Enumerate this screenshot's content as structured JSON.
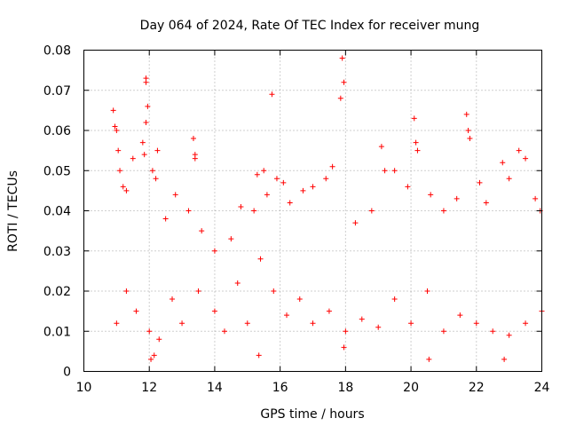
{
  "chart_data": {
    "type": "scatter",
    "title": "Day 064 of 2024, Rate Of TEC Index for receiver mung",
    "xlabel": "GPS time / hours",
    "ylabel": "ROTI / TECUs",
    "xlim": [
      10,
      24
    ],
    "ylim": [
      0,
      0.08
    ],
    "x_ticks": [
      "10",
      "12",
      "14",
      "16",
      "18",
      "20",
      "22",
      "24"
    ],
    "y_ticks": [
      "0",
      "0.01",
      "0.02",
      "0.03",
      "0.04",
      "0.05",
      "0.06",
      "0.07",
      "0.08"
    ],
    "grid": true,
    "marker": "+",
    "series_color": "#ff0000",
    "series": [
      {
        "name": "ROTI",
        "points": [
          [
            10.9,
            0.065
          ],
          [
            10.95,
            0.061
          ],
          [
            11.0,
            0.06
          ],
          [
            11.05,
            0.055
          ],
          [
            11.1,
            0.05
          ],
          [
            11.2,
            0.046
          ],
          [
            11.3,
            0.045
          ],
          [
            11.5,
            0.053
          ],
          [
            11.8,
            0.057
          ],
          [
            11.85,
            0.054
          ],
          [
            11.9,
            0.073
          ],
          [
            11.9,
            0.072
          ],
          [
            11.95,
            0.066
          ],
          [
            11.9,
            0.062
          ],
          [
            12.1,
            0.05
          ],
          [
            12.2,
            0.048
          ],
          [
            12.25,
            0.055
          ],
          [
            12.5,
            0.038
          ],
          [
            12.8,
            0.044
          ],
          [
            13.2,
            0.04
          ],
          [
            13.35,
            0.058
          ],
          [
            13.4,
            0.054
          ],
          [
            13.4,
            0.053
          ],
          [
            13.6,
            0.035
          ],
          [
            14.0,
            0.03
          ],
          [
            14.5,
            0.033
          ],
          [
            14.8,
            0.041
          ],
          [
            15.2,
            0.04
          ],
          [
            15.3,
            0.049
          ],
          [
            15.5,
            0.05
          ],
          [
            15.6,
            0.044
          ],
          [
            15.75,
            0.069
          ],
          [
            15.9,
            0.048
          ],
          [
            16.1,
            0.047
          ],
          [
            16.3,
            0.042
          ],
          [
            16.7,
            0.045
          ],
          [
            17.0,
            0.046
          ],
          [
            17.4,
            0.048
          ],
          [
            17.6,
            0.051
          ],
          [
            17.85,
            0.068
          ],
          [
            17.9,
            0.078
          ],
          [
            17.95,
            0.072
          ],
          [
            18.3,
            0.037
          ],
          [
            18.8,
            0.04
          ],
          [
            19.1,
            0.056
          ],
          [
            19.2,
            0.05
          ],
          [
            19.5,
            0.05
          ],
          [
            19.9,
            0.046
          ],
          [
            20.1,
            0.063
          ],
          [
            20.15,
            0.057
          ],
          [
            20.2,
            0.055
          ],
          [
            20.6,
            0.044
          ],
          [
            21.0,
            0.04
          ],
          [
            21.4,
            0.043
          ],
          [
            21.7,
            0.064
          ],
          [
            21.75,
            0.06
          ],
          [
            21.8,
            0.058
          ],
          [
            22.1,
            0.047
          ],
          [
            22.3,
            0.042
          ],
          [
            22.8,
            0.052
          ],
          [
            23.0,
            0.048
          ],
          [
            23.3,
            0.055
          ],
          [
            23.5,
            0.053
          ],
          [
            23.8,
            0.043
          ],
          [
            23.95,
            0.04
          ],
          [
            11.0,
            0.012
          ],
          [
            11.3,
            0.02
          ],
          [
            11.6,
            0.015
          ],
          [
            12.0,
            0.01
          ],
          [
            12.3,
            0.008
          ],
          [
            12.7,
            0.018
          ],
          [
            13.0,
            0.012
          ],
          [
            13.5,
            0.02
          ],
          [
            14.0,
            0.015
          ],
          [
            14.3,
            0.01
          ],
          [
            14.7,
            0.022
          ],
          [
            15.0,
            0.012
          ],
          [
            15.4,
            0.028
          ],
          [
            15.8,
            0.02
          ],
          [
            16.2,
            0.014
          ],
          [
            16.6,
            0.018
          ],
          [
            17.0,
            0.012
          ],
          [
            17.5,
            0.015
          ],
          [
            18.0,
            0.01
          ],
          [
            18.5,
            0.013
          ],
          [
            19.0,
            0.011
          ],
          [
            19.5,
            0.018
          ],
          [
            20.0,
            0.012
          ],
          [
            20.5,
            0.02
          ],
          [
            21.0,
            0.01
          ],
          [
            21.5,
            0.014
          ],
          [
            22.0,
            0.012
          ],
          [
            22.5,
            0.01
          ],
          [
            23.0,
            0.009
          ],
          [
            23.5,
            0.012
          ],
          [
            24.0,
            0.015
          ],
          [
            12.05,
            0.003
          ],
          [
            12.15,
            0.004
          ],
          [
            15.35,
            0.004
          ],
          [
            17.95,
            0.006
          ],
          [
            20.55,
            0.003
          ],
          [
            22.85,
            0.003
          ]
        ]
      }
    ]
  }
}
